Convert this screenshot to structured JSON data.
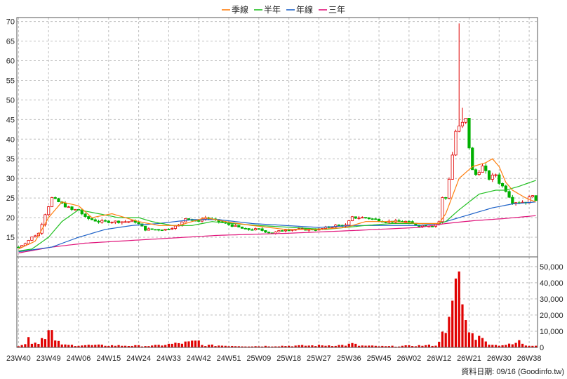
{
  "chart_data": {
    "type": "candlestick",
    "legend_placement": "top-center",
    "legend": [
      {
        "name": "季線",
        "color": "#ff7f0e"
      },
      {
        "name": "半年",
        "color": "#22c022"
      },
      {
        "name": "年線",
        "color": "#1f63c8"
      },
      {
        "name": "三年",
        "color": "#e0137a"
      }
    ],
    "price_axis": {
      "ylim": [
        10,
        71
      ],
      "ticks": [
        15,
        20,
        25,
        30,
        35,
        40,
        45,
        50,
        55,
        60,
        65,
        70
      ],
      "grid": true
    },
    "volume_axis": {
      "ylim": [
        0,
        56000
      ],
      "ticks": [
        "0",
        "10,000",
        "20,000",
        "30,000",
        "40,000",
        "50,000"
      ],
      "tick_values": [
        0,
        10000,
        20000,
        30000,
        40000,
        50000
      ],
      "grid": true
    },
    "x_tick_labels": [
      "23W40",
      "23W49",
      "24W06",
      "24W15",
      "24W24",
      "24W33",
      "24W42",
      "24W51",
      "25W09",
      "25W18",
      "25W27",
      "25W36",
      "25W45",
      "26W02",
      "26W12",
      "26W21",
      "26W30",
      "26W38"
    ],
    "x_tick_weeks": [
      0,
      9,
      18,
      27,
      36,
      45,
      54,
      63,
      72,
      81,
      90,
      99,
      108,
      117,
      126,
      135,
      144,
      153
    ],
    "up_color": "#e00000",
    "down_color": "#00b000",
    "volume_color": "#e00000",
    "footer": "資料日期: 09/16 (Goodinfo.tw)",
    "anchors": {
      "price": [
        [
          0,
          12.5
        ],
        [
          2,
          13.5
        ],
        [
          4,
          15
        ],
        [
          6,
          16
        ],
        [
          8,
          21
        ],
        [
          10,
          25
        ],
        [
          12,
          24
        ],
        [
          16,
          22
        ],
        [
          18,
          22
        ],
        [
          20,
          20
        ],
        [
          24,
          19
        ],
        [
          26,
          19
        ],
        [
          30,
          19
        ],
        [
          33,
          19
        ],
        [
          35,
          19
        ],
        [
          38,
          17
        ],
        [
          44,
          17
        ],
        [
          48,
          18
        ],
        [
          50,
          20
        ],
        [
          53,
          19
        ],
        [
          56,
          20
        ],
        [
          60,
          19
        ],
        [
          64,
          18
        ],
        [
          68,
          17
        ],
        [
          72,
          17
        ],
        [
          76,
          16
        ],
        [
          80,
          17
        ],
        [
          86,
          17
        ],
        [
          90,
          17
        ],
        [
          95,
          18
        ],
        [
          98,
          18
        ],
        [
          100,
          20
        ],
        [
          104,
          20
        ],
        [
          110,
          19
        ],
        [
          116,
          19
        ],
        [
          120,
          18
        ],
        [
          124,
          18
        ],
        [
          126,
          19
        ],
        [
          127,
          25
        ],
        [
          128,
          25
        ],
        [
          129,
          30
        ],
        [
          131,
          42
        ],
        [
          133,
          44
        ],
        [
          134,
          45
        ],
        [
          135,
          38
        ],
        [
          136,
          32
        ],
        [
          137,
          31
        ],
        [
          139,
          33
        ],
        [
          141,
          30
        ],
        [
          143,
          31
        ],
        [
          144,
          29
        ],
        [
          146,
          27
        ],
        [
          148,
          24
        ],
        [
          150,
          24
        ],
        [
          152,
          24
        ],
        [
          153,
          25
        ],
        [
          154,
          26
        ],
        [
          155,
          24
        ]
      ],
      "ma_quarter": [
        [
          0,
          12
        ],
        [
          5,
          14
        ],
        [
          9,
          20
        ],
        [
          13,
          24
        ],
        [
          18,
          23
        ],
        [
          22,
          20
        ],
        [
          28,
          21
        ],
        [
          32,
          20
        ],
        [
          36,
          19
        ],
        [
          42,
          18
        ],
        [
          48,
          18
        ],
        [
          52,
          19
        ],
        [
          56,
          20
        ],
        [
          62,
          19
        ],
        [
          70,
          18
        ],
        [
          80,
          17
        ],
        [
          90,
          17
        ],
        [
          98,
          17.5
        ],
        [
          104,
          19
        ],
        [
          112,
          19
        ],
        [
          120,
          18.5
        ],
        [
          126,
          18.5
        ],
        [
          128,
          21
        ],
        [
          132,
          30
        ],
        [
          136,
          33
        ],
        [
          140,
          34
        ],
        [
          142,
          35
        ],
        [
          144,
          33
        ],
        [
          146,
          29
        ],
        [
          148,
          27
        ],
        [
          152,
          25
        ],
        [
          155,
          24
        ]
      ],
      "ma_half": [
        [
          0,
          11.5
        ],
        [
          4,
          12
        ],
        [
          9,
          15
        ],
        [
          13,
          19
        ],
        [
          18,
          22
        ],
        [
          24,
          21
        ],
        [
          30,
          20
        ],
        [
          36,
          20
        ],
        [
          40,
          19
        ],
        [
          46,
          18
        ],
        [
          52,
          18
        ],
        [
          58,
          19
        ],
        [
          64,
          18.5
        ],
        [
          72,
          18
        ],
        [
          82,
          17.5
        ],
        [
          92,
          17
        ],
        [
          98,
          17.5
        ],
        [
          104,
          18
        ],
        [
          112,
          18.5
        ],
        [
          120,
          18.5
        ],
        [
          126,
          18.5
        ],
        [
          128,
          19
        ],
        [
          132,
          22
        ],
        [
          138,
          26
        ],
        [
          143,
          27
        ],
        [
          146,
          27
        ],
        [
          150,
          28
        ],
        [
          155,
          29.5
        ]
      ],
      "ma_year": [
        [
          0,
          11.3
        ],
        [
          10,
          12.5
        ],
        [
          18,
          15
        ],
        [
          26,
          17
        ],
        [
          34,
          18
        ],
        [
          42,
          18.5
        ],
        [
          52,
          19.5
        ],
        [
          60,
          19.5
        ],
        [
          70,
          18.5
        ],
        [
          80,
          18
        ],
        [
          90,
          17.5
        ],
        [
          100,
          18
        ],
        [
          110,
          18
        ],
        [
          120,
          18
        ],
        [
          126,
          18.5
        ],
        [
          130,
          19.5
        ],
        [
          136,
          21
        ],
        [
          142,
          22.5
        ],
        [
          148,
          23.5
        ],
        [
          155,
          24
        ]
      ],
      "ma_3yr": [
        [
          0,
          11
        ],
        [
          10,
          12.5
        ],
        [
          20,
          13.5
        ],
        [
          40,
          14.5
        ],
        [
          60,
          15.5
        ],
        [
          80,
          16
        ],
        [
          100,
          16.7
        ],
        [
          120,
          17.5
        ],
        [
          128,
          18.5
        ],
        [
          136,
          19.2
        ],
        [
          146,
          19.8
        ],
        [
          155,
          20.5
        ]
      ],
      "volume": [
        [
          0,
          1000
        ],
        [
          2,
          2000
        ],
        [
          3,
          10000
        ],
        [
          4,
          3000
        ],
        [
          6,
          3500
        ],
        [
          8,
          9000
        ],
        [
          9,
          11000
        ],
        [
          10,
          10000
        ],
        [
          11,
          4000
        ],
        [
          14,
          1500
        ],
        [
          20,
          1500
        ],
        [
          40,
          1000
        ],
        [
          54,
          4000
        ],
        [
          55,
          1500
        ],
        [
          70,
          800
        ],
        [
          98,
          1500
        ],
        [
          100,
          2500
        ],
        [
          102,
          1200
        ],
        [
          110,
          700
        ],
        [
          125,
          1500
        ],
        [
          126,
          3000
        ],
        [
          127,
          15000
        ],
        [
          128,
          14000
        ],
        [
          129,
          16000
        ],
        [
          130,
          25000
        ],
        [
          131,
          37000
        ],
        [
          132,
          52000
        ],
        [
          133,
          28000
        ],
        [
          134,
          16000
        ],
        [
          135,
          15000
        ],
        [
          136,
          8000
        ],
        [
          137,
          7000
        ],
        [
          138,
          11000
        ],
        [
          139,
          5000
        ],
        [
          140,
          3500
        ],
        [
          141,
          3000
        ],
        [
          143,
          1500
        ],
        [
          148,
          2000
        ],
        [
          150,
          4000
        ],
        [
          152,
          1500
        ],
        [
          155,
          1500
        ]
      ]
    }
  }
}
